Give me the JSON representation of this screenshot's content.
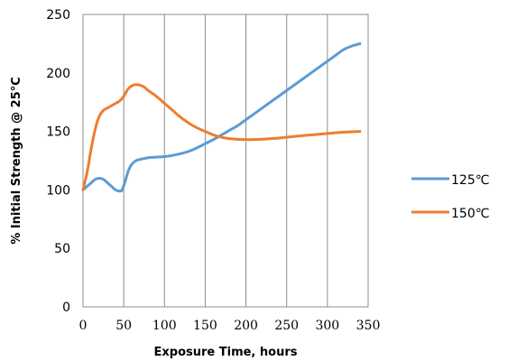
{
  "chart_data": {
    "type": "line",
    "title": "",
    "xlabel": "Exposure Time, hours",
    "ylabel": "% Initial Strength @ 25°C",
    "xlim": [
      0,
      350
    ],
    "ylim": [
      0,
      250
    ],
    "x_ticks": [
      "0",
      "50",
      "100",
      "150",
      "200",
      "250",
      "300",
      "350"
    ],
    "y_ticks": [
      "0",
      "50",
      "100",
      "150",
      "200",
      "250"
    ],
    "grid": "vertical",
    "legend_position": "right",
    "series": [
      {
        "name": "125℃",
        "color": "#5b9bd5",
        "x": [
          0,
          5,
          10,
          15,
          20,
          25,
          30,
          35,
          40,
          45,
          48,
          52,
          56,
          60,
          65,
          70,
          80,
          90,
          100,
          110,
          120,
          130,
          140,
          150,
          160,
          170,
          180,
          190,
          200,
          210,
          220,
          230,
          240,
          250,
          260,
          270,
          280,
          290,
          300,
          310,
          320,
          330,
          340
        ],
        "y": [
          100,
          103,
          106,
          109,
          110,
          109,
          106,
          103,
          100,
          99,
          100,
          108,
          117,
          122,
          125,
          126,
          127.5,
          128,
          128.5,
          129.5,
          131,
          133,
          136,
          139.5,
          143,
          147,
          151,
          155,
          160,
          165,
          170,
          175,
          180,
          185,
          190,
          195,
          200,
          205,
          210,
          215,
          220,
          223,
          225
        ]
      },
      {
        "name": "150℃",
        "color": "#ed7d31",
        "x": [
          0,
          5,
          10,
          15,
          20,
          25,
          30,
          35,
          40,
          45,
          50,
          55,
          60,
          65,
          70,
          75,
          80,
          90,
          100,
          110,
          120,
          130,
          140,
          150,
          160,
          170,
          180,
          190,
          200,
          210,
          220,
          230,
          240,
          250,
          260,
          270,
          280,
          290,
          300,
          310,
          320,
          330,
          340
        ],
        "y": [
          100,
          115,
          135,
          152,
          163,
          168,
          170,
          172,
          174,
          176,
          180,
          186,
          189,
          190,
          189.5,
          188,
          185,
          180,
          174,
          168,
          162,
          157,
          153,
          150,
          147,
          145,
          143.8,
          143.2,
          143,
          143,
          143.3,
          143.8,
          144.3,
          145,
          145.7,
          146.4,
          147,
          147.6,
          148.2,
          148.8,
          149.3,
          149.7,
          150
        ]
      }
    ]
  }
}
